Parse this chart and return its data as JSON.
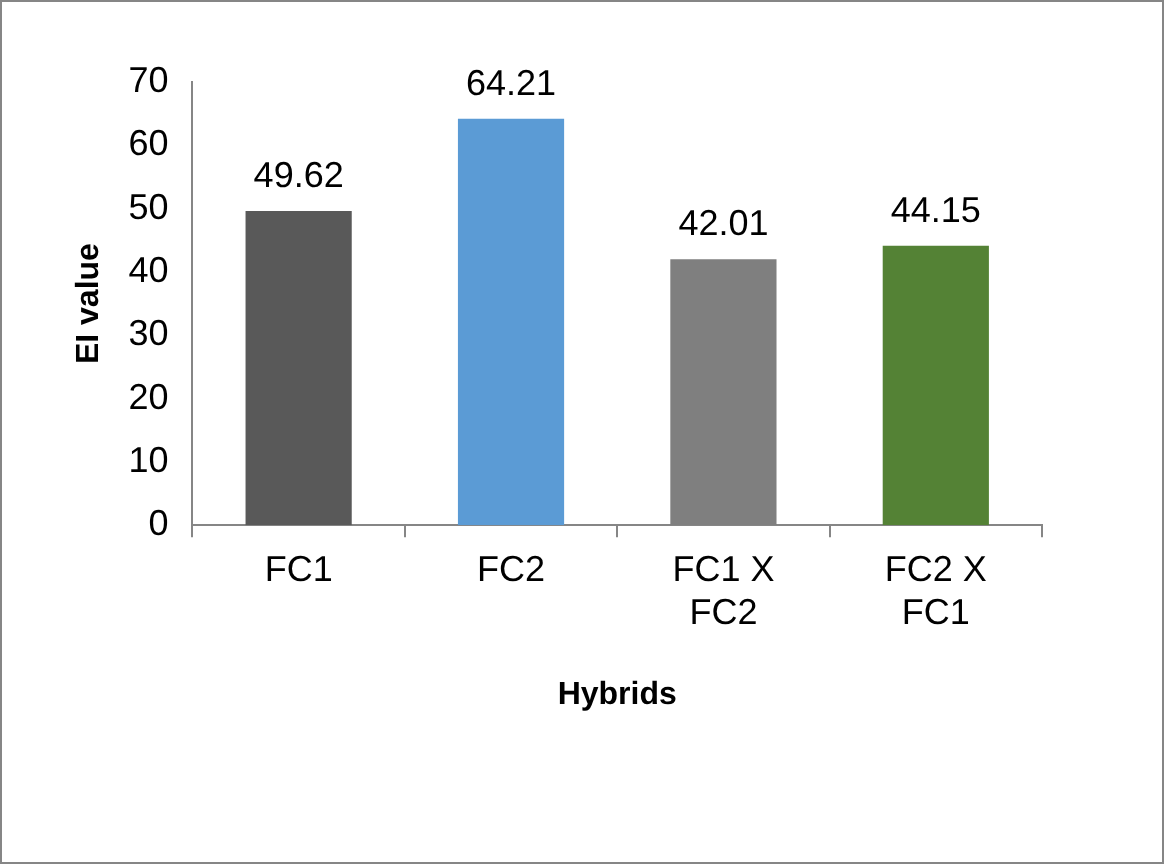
{
  "chart_data": {
    "type": "bar",
    "xlabel": "Hybrids",
    "ylabel": "EI value",
    "categories": [
      "FC1",
      "FC2",
      "FC1 X FC2",
      "FC2 X FC1"
    ],
    "values": [
      49.62,
      64.21,
      42.01,
      44.15
    ],
    "colors": [
      "#595959",
      "#5b9bd5",
      "#7f7f7f",
      "#548235"
    ],
    "ylim": [
      0,
      70
    ],
    "yticks": [
      0,
      10,
      20,
      30,
      40,
      50,
      60,
      70
    ],
    "grid": false,
    "data_labels": true
  }
}
